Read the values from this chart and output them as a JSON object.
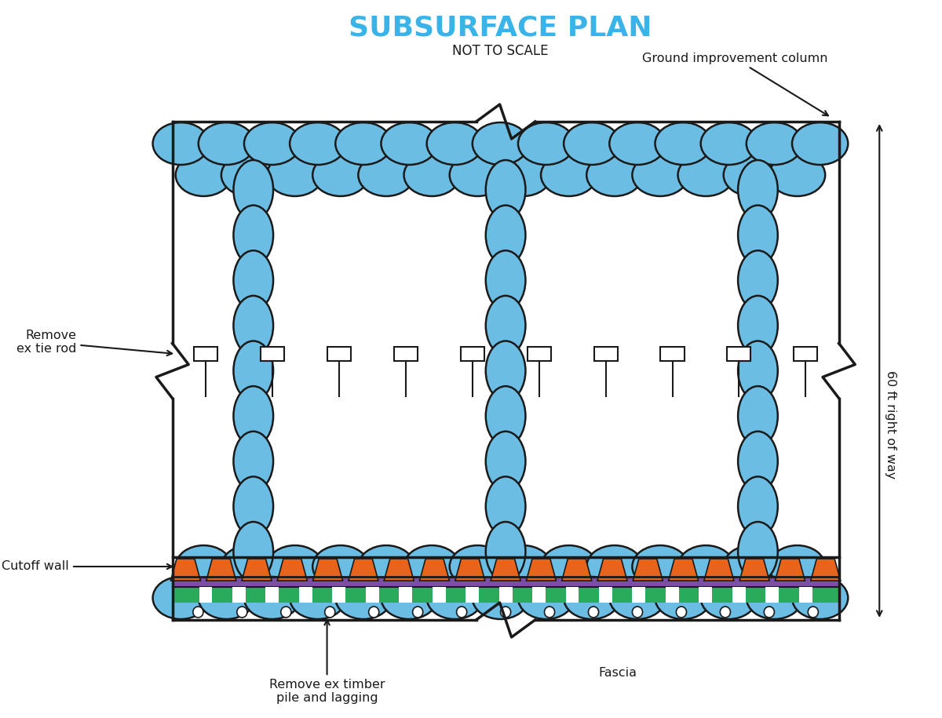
{
  "title": "SUBSURFACE PLAN",
  "subtitle": "NOT TO SCALE",
  "title_color": "#3ab4e8",
  "subtitle_color": "#222222",
  "circle_fill": "#6bbde3",
  "circle_edge": "#1a1a1a",
  "bg_color": "#ffffff",
  "border_color": "#1a1a1a",
  "orange_color": "#e8641a",
  "purple_color": "#7b4fa6",
  "green_color": "#2aab5b",
  "annotation_color": "#1a1a1a",
  "label_ground_improvement": "Ground improvement column",
  "label_cutoff_wall": "Cutoff wall",
  "label_remove_tie_rod": "Remove\nex tie rod",
  "label_remove_timber": "Remove ex timber\npile and lagging",
  "label_fascia": "Fascia",
  "label_row": "60 ft right of way"
}
